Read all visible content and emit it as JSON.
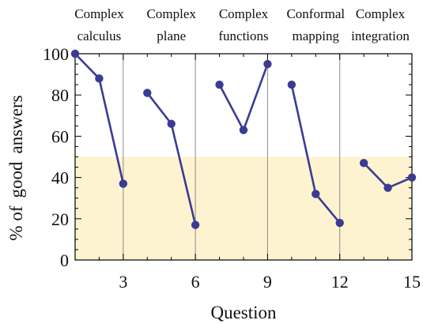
{
  "chart_data": {
    "type": "line",
    "xlabel": "Question",
    "ylabel_words": [
      "% of",
      "good",
      "answers"
    ],
    "xlim": [
      1,
      15
    ],
    "ylim": [
      0,
      100
    ],
    "x_ticks": [
      3,
      6,
      9,
      12,
      15
    ],
    "y_ticks": [
      0,
      20,
      40,
      60,
      80,
      100
    ],
    "shaded_band": {
      "y_from": 0,
      "y_to": 50,
      "color": "#fdf3d0"
    },
    "separators_x": [
      3,
      6,
      9,
      12
    ],
    "series_color": "#3b3b94",
    "sections": [
      {
        "line1": "Complex",
        "line2": "calculus",
        "x_start": 1,
        "x_end": 3
      },
      {
        "line1": "Complex",
        "line2": "plane",
        "x_start": 4,
        "x_end": 6
      },
      {
        "line1": "Complex",
        "line2": "functions",
        "x_start": 7,
        "x_end": 9
      },
      {
        "line1": "Conformal",
        "line2": "mapping",
        "x_start": 10,
        "x_end": 12
      },
      {
        "line1": "Complex",
        "line2": "integration",
        "x_start": 13,
        "x_end": 15
      }
    ],
    "segments": [
      {
        "x": [
          1,
          2,
          3
        ],
        "y": [
          100,
          88,
          37
        ]
      },
      {
        "x": [
          4,
          5,
          6
        ],
        "y": [
          81,
          66,
          17
        ]
      },
      {
        "x": [
          7,
          8,
          9
        ],
        "y": [
          85,
          63,
          95
        ]
      },
      {
        "x": [
          10,
          11,
          12
        ],
        "y": [
          85,
          32,
          18
        ]
      },
      {
        "x": [
          13,
          14,
          15
        ],
        "y": [
          47,
          35,
          40
        ]
      }
    ]
  }
}
